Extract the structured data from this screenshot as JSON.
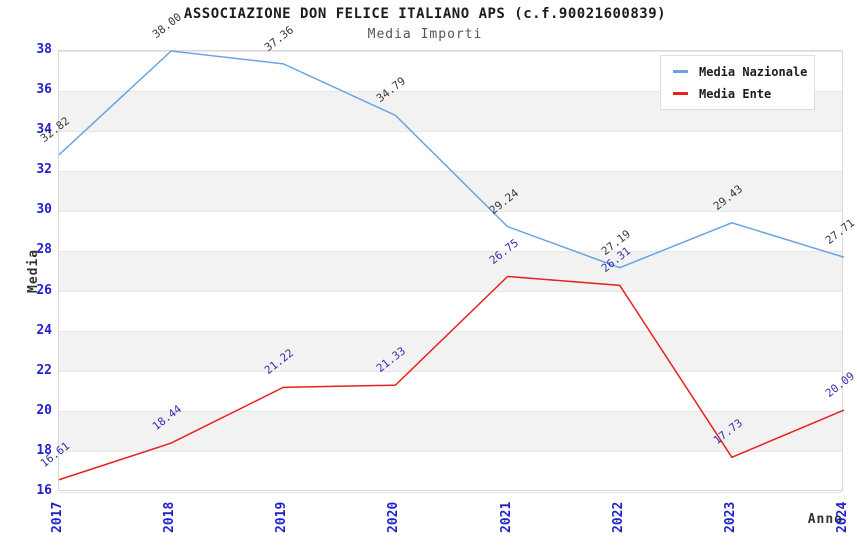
{
  "header": {
    "title": "ASSOCIAZIONE DON FELICE ITALIANO APS (c.f.90021600839)",
    "subtitle": "Media Importi"
  },
  "chart_data": {
    "type": "line",
    "title": "ASSOCIAZIONE DON FELICE ITALIANO APS (c.f.90021600839)",
    "subtitle": "Media Importi",
    "xlabel": "Anno",
    "ylabel": "Media",
    "x": [
      "2017",
      "2018",
      "2019",
      "2020",
      "2021",
      "2022",
      "2023",
      "2024"
    ],
    "series": [
      {
        "name": "Media Nazionale",
        "color": "#6ba3e0",
        "label_color": "#3a3a3a",
        "values": [
          32.82,
          38.0,
          37.36,
          34.79,
          29.24,
          27.19,
          29.43,
          27.71
        ]
      },
      {
        "name": "Media Ente",
        "color": "#e8201e",
        "label_color": "#3333aa",
        "values": [
          16.61,
          18.44,
          21.22,
          21.33,
          26.75,
          26.31,
          17.73,
          20.09
        ]
      }
    ],
    "ylim": [
      16,
      38
    ],
    "yticks": [
      16,
      18,
      20,
      22,
      24,
      26,
      28,
      30,
      32,
      34,
      36,
      38
    ],
    "tick_color": "#2222cc",
    "band_color": "#f2f2f2",
    "grid": true,
    "legend_position": "top-right"
  }
}
